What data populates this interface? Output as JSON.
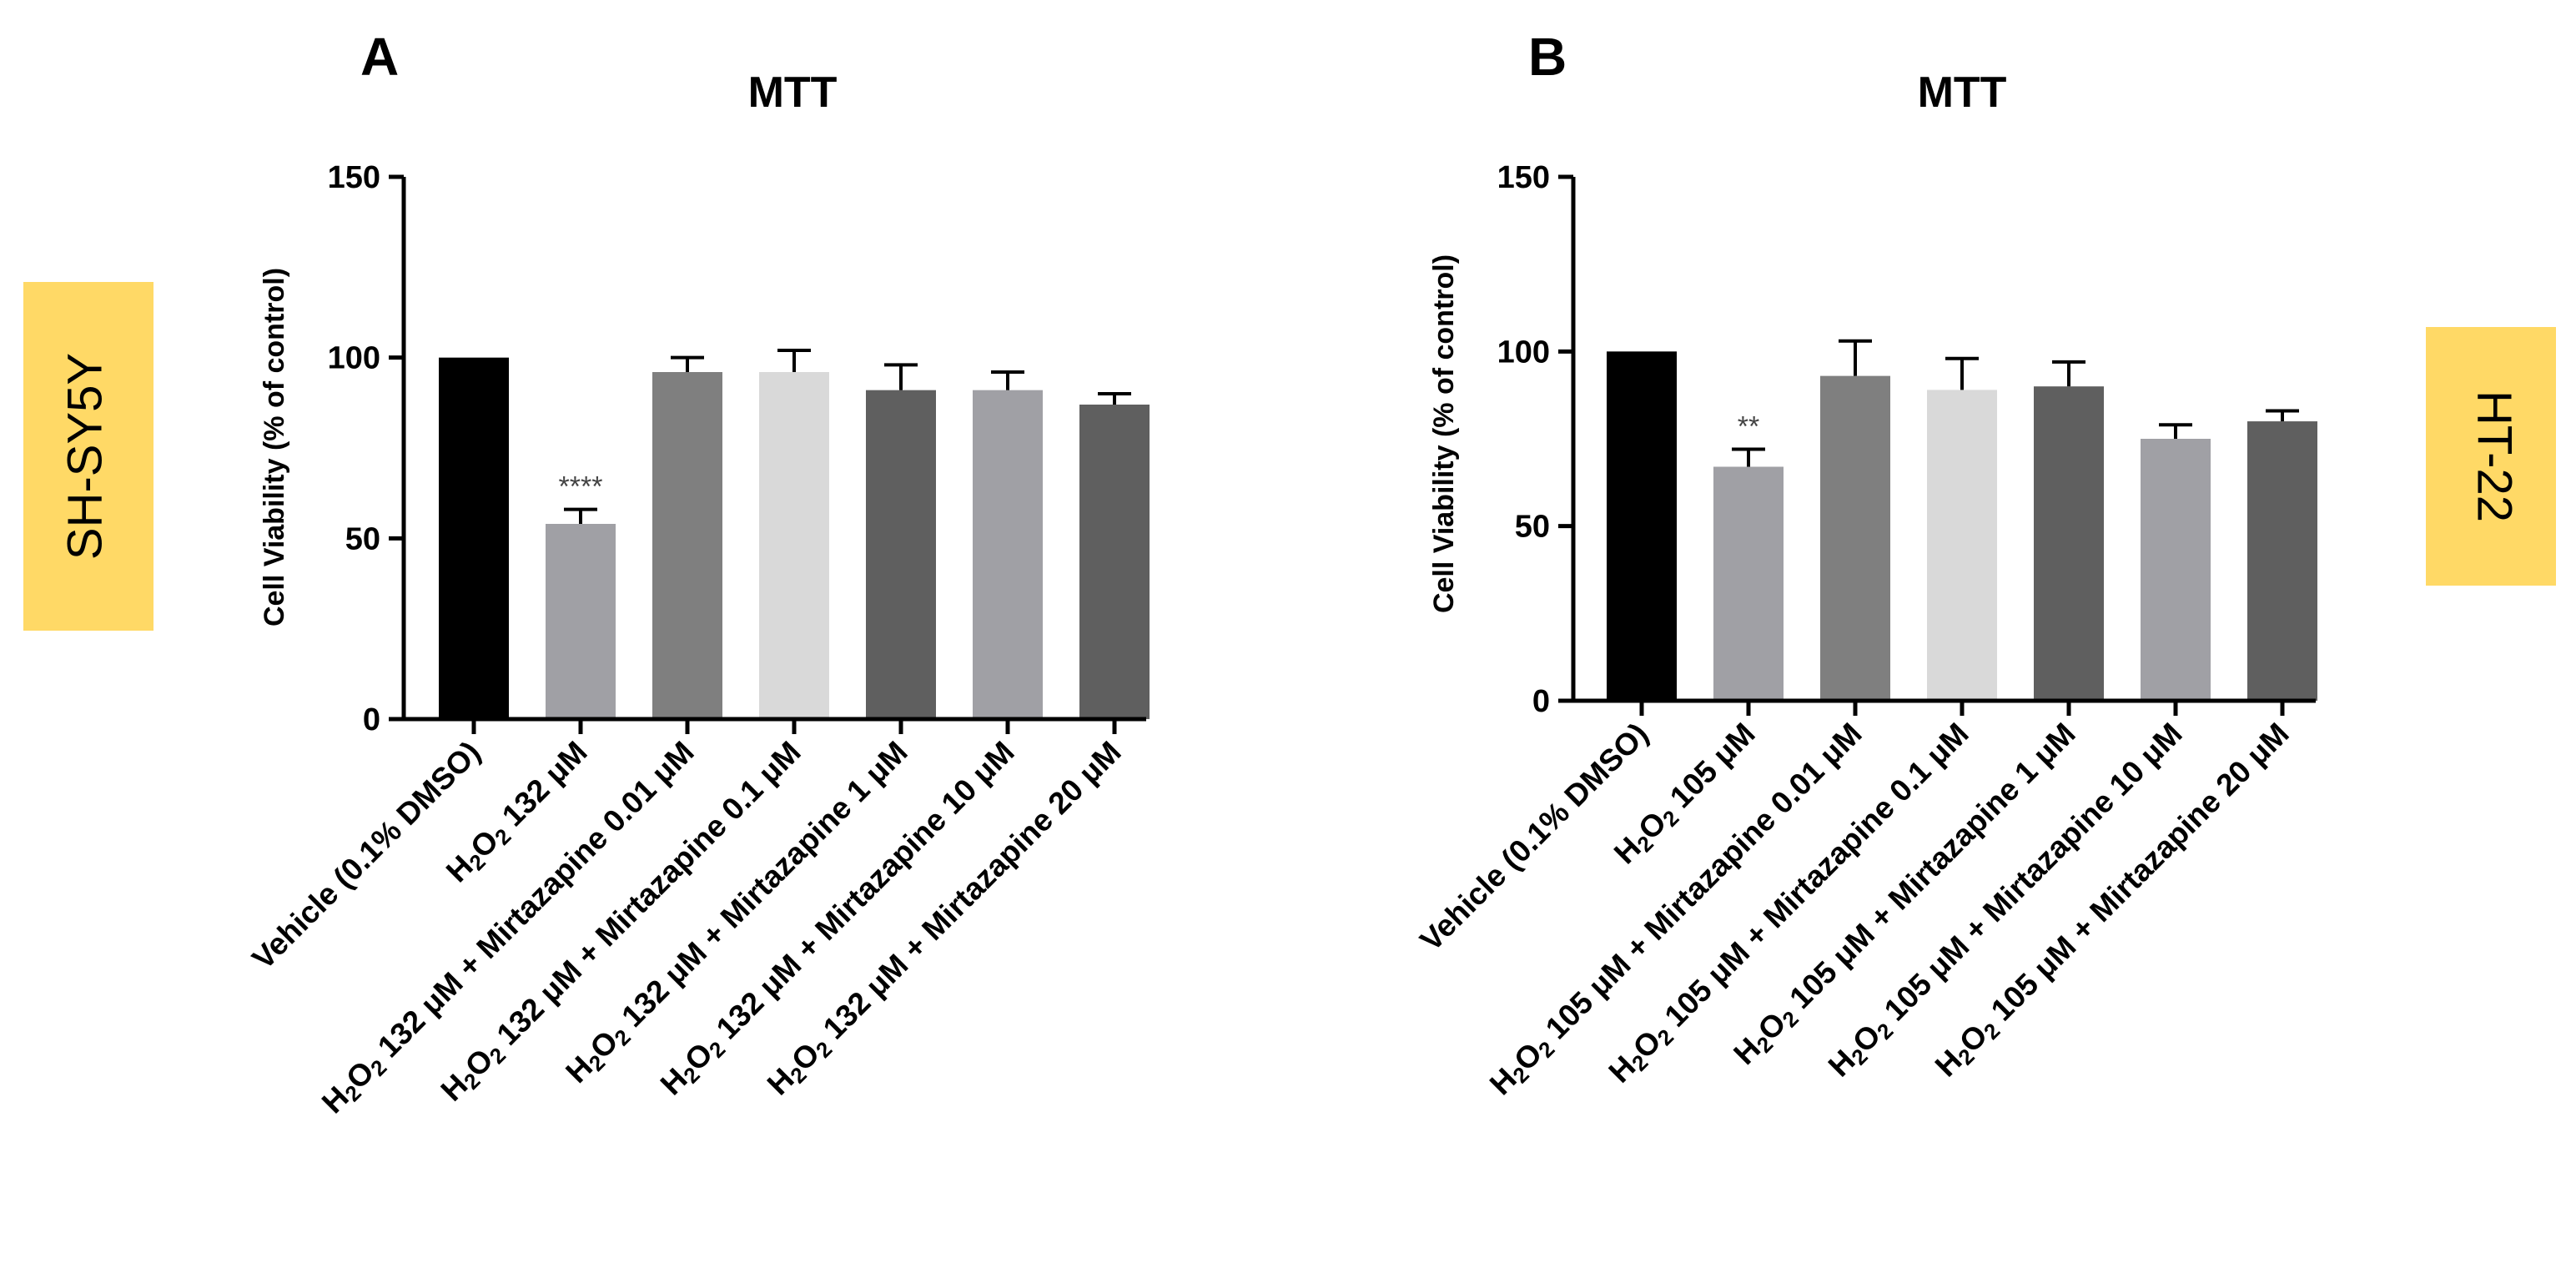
{
  "colors": {
    "badge": "#ffd966",
    "axis": "#000000",
    "error_bar": "#000000"
  },
  "chart_data": [
    {
      "panel": "A",
      "type": "bar",
      "title": "MTT",
      "cell_line": "SH-SY5Y",
      "ylabel": "Cell Viability (% of control)",
      "xlabel": "",
      "ylim": [
        0,
        150
      ],
      "yticks": [
        0,
        50,
        100,
        150
      ],
      "grid": false,
      "categories": [
        {
          "parts": [
            {
              "t": "Vehicle (0.1% DMSO)"
            }
          ]
        },
        {
          "parts": [
            {
              "t": "H"
            },
            {
              "t": "2",
              "sub": true
            },
            {
              "t": "O"
            },
            {
              "t": "2",
              "sub": true
            },
            {
              "t": " 132 μM"
            }
          ]
        },
        {
          "parts": [
            {
              "t": "H"
            },
            {
              "t": "2",
              "sub": true
            },
            {
              "t": "O"
            },
            {
              "t": "2",
              "sub": true
            },
            {
              "t": " 132 μM + Mirtazapine 0.01 μM"
            }
          ]
        },
        {
          "parts": [
            {
              "t": "H"
            },
            {
              "t": "2",
              "sub": true
            },
            {
              "t": "O"
            },
            {
              "t": "2",
              "sub": true
            },
            {
              "t": " 132 μM + Mirtazapine 0.1 μM"
            }
          ]
        },
        {
          "parts": [
            {
              "t": "H"
            },
            {
              "t": "2",
              "sub": true
            },
            {
              "t": "O"
            },
            {
              "t": "2",
              "sub": true
            },
            {
              "t": " 132 μM + Mirtazapine 1 μM"
            }
          ]
        },
        {
          "parts": [
            {
              "t": "H"
            },
            {
              "t": "2",
              "sub": true
            },
            {
              "t": "O"
            },
            {
              "t": "2",
              "sub": true
            },
            {
              "t": " 132 μM + Mirtazapine 10 μM"
            }
          ]
        },
        {
          "parts": [
            {
              "t": "H"
            },
            {
              "t": "2",
              "sub": true
            },
            {
              "t": "O"
            },
            {
              "t": "2",
              "sub": true
            },
            {
              "t": " 132 μM + Mirtazapine 20 μM"
            }
          ]
        }
      ],
      "values": [
        100,
        54,
        96,
        96,
        91,
        91,
        87
      ],
      "errors": [
        0,
        4,
        4,
        6,
        7,
        5,
        3
      ],
      "bar_colors": [
        "#000000",
        "#a0a0a5",
        "#7f7f7f",
        "#d9d9d9",
        "#5f5f5f",
        "#a0a0a5",
        "#5f5f5f"
      ],
      "significance": [
        "",
        "****",
        "",
        "",
        "",
        "",
        ""
      ]
    },
    {
      "panel": "B",
      "type": "bar",
      "title": "MTT",
      "cell_line": "HT-22",
      "ylabel": "Cell Viability (%  of control)",
      "xlabel": "",
      "ylim": [
        0,
        150
      ],
      "yticks": [
        0,
        50,
        100,
        150
      ],
      "grid": false,
      "categories": [
        {
          "parts": [
            {
              "t": "Vehicle (0.1% DMSO)"
            }
          ]
        },
        {
          "parts": [
            {
              "t": "H"
            },
            {
              "t": "2",
              "sub": true
            },
            {
              "t": "O"
            },
            {
              "t": "2",
              "sub": true
            },
            {
              "t": " 105 μM"
            }
          ]
        },
        {
          "parts": [
            {
              "t": "H"
            },
            {
              "t": "2",
              "sub": true
            },
            {
              "t": "O"
            },
            {
              "t": "2",
              "sub": true
            },
            {
              "t": " 105 μM + Mirtazapine 0.01 μM"
            }
          ]
        },
        {
          "parts": [
            {
              "t": "H"
            },
            {
              "t": "2",
              "sub": true
            },
            {
              "t": "O"
            },
            {
              "t": "2",
              "sub": true
            },
            {
              "t": " 105 μM + Mirtazapine 0.1 μM"
            }
          ]
        },
        {
          "parts": [
            {
              "t": "H"
            },
            {
              "t": "2",
              "sub": true
            },
            {
              "t": "O"
            },
            {
              "t": "2",
              "sub": true
            },
            {
              "t": " 105 μM + Mirtazapine 1 μM"
            }
          ]
        },
        {
          "parts": [
            {
              "t": "H"
            },
            {
              "t": "2",
              "sub": true
            },
            {
              "t": "O"
            },
            {
              "t": "2",
              "sub": true
            },
            {
              "t": " 105 μM + Mirtazapine 10 μM"
            }
          ]
        },
        {
          "parts": [
            {
              "t": "H"
            },
            {
              "t": "2",
              "sub": true
            },
            {
              "t": "O"
            },
            {
              "t": "2",
              "sub": true
            },
            {
              "t": " 105 μM + Mirtazapine 20 μM"
            }
          ]
        }
      ],
      "values": [
        100,
        67,
        93,
        89,
        90,
        75,
        80
      ],
      "errors": [
        0,
        5,
        10,
        9,
        7,
        4,
        3
      ],
      "bar_colors": [
        "#000000",
        "#a0a0a5",
        "#7f7f7f",
        "#d9d9d9",
        "#5f5f5f",
        "#a0a0a5",
        "#5f5f5f"
      ],
      "significance": [
        "",
        "**",
        "",
        "",
        "",
        "",
        ""
      ]
    }
  ]
}
